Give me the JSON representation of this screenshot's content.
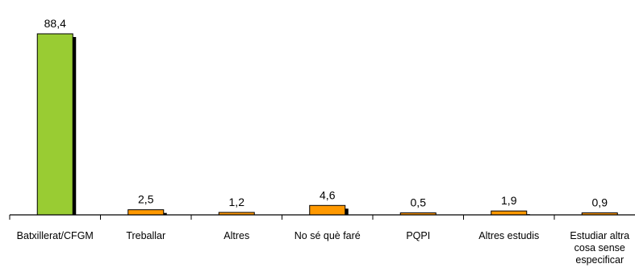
{
  "chart_data": {
    "type": "bar",
    "categories": [
      [
        "Batxillerat/CFGM"
      ],
      [
        "Treballar"
      ],
      [
        "Altres"
      ],
      [
        "No sé què faré"
      ],
      [
        "PQPI"
      ],
      [
        "Altres estudis"
      ],
      [
        "Estudiar altra",
        "cosa sense",
        "especificar"
      ]
    ],
    "values": [
      88.4,
      2.5,
      1.2,
      4.6,
      0.5,
      1.9,
      0.9
    ],
    "value_labels": [
      "88,4",
      "2,5",
      "1,2",
      "4,6",
      "0,5",
      "1,9",
      "0,9"
    ],
    "bar_colors": [
      "#99cc33",
      "#ff9900",
      "#ff9900",
      "#ff9900",
      "#ff9900",
      "#ff9900",
      "#ff9900"
    ],
    "shadow_color": "#000000",
    "axis_color": "#000000",
    "title": "",
    "xlabel": "",
    "ylabel": "",
    "ylim": [
      0,
      88.4
    ],
    "grid": false,
    "legend": "none"
  }
}
